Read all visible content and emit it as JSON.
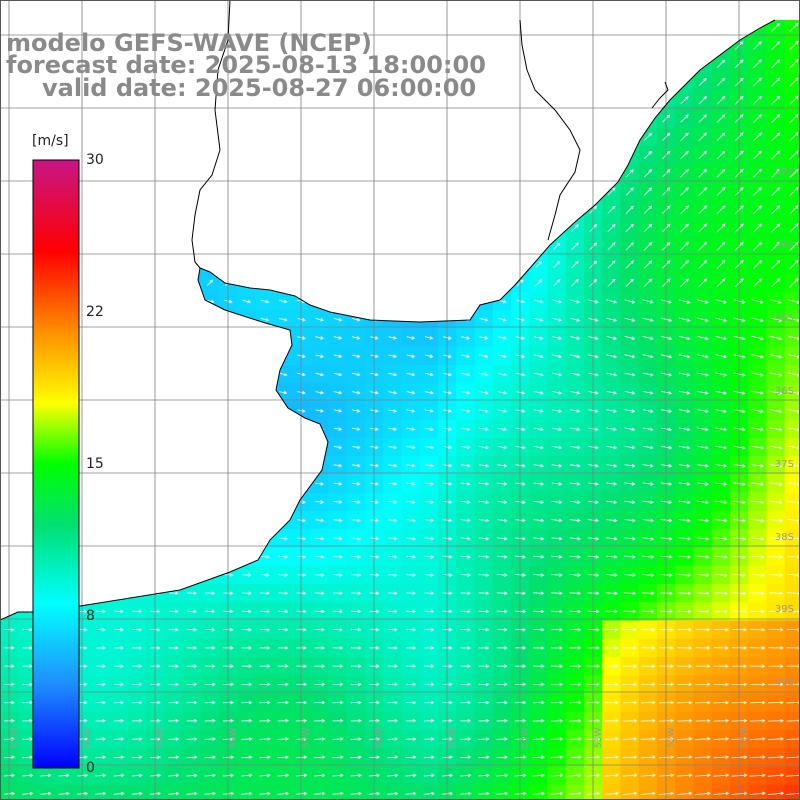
{
  "titles": {
    "model": "modelo GEFS-WAVE (NCEP)",
    "forecast": "forecast date: 2025-08-13 18:00:00",
    "valid": "valid date: 2025-08-27 06:00:00"
  },
  "colorbar": {
    "unit": "[m/s]",
    "ticks": [
      "30",
      "22",
      "15",
      "8",
      "0"
    ],
    "min": 0,
    "max": 30,
    "colors": [
      "#0000ff",
      "#1e90ff",
      "#00ffff",
      "#00ff00",
      "#ffff00",
      "#ff8c00",
      "#ff0000",
      "#c71585"
    ]
  },
  "map": {
    "lat_labels": [
      "33S",
      "34S",
      "35S",
      "36S",
      "37S",
      "38S",
      "39S",
      "40S"
    ],
    "lon_labels": [
      "61W",
      "60W",
      "59W",
      "58W",
      "57W",
      "56W",
      "55W",
      "54W",
      "53W",
      "52W",
      "51W"
    ],
    "grid_color": "#808080",
    "arrow_color": "#ffffff",
    "land_color": "#ffffff",
    "coast_color": "#000000"
  }
}
